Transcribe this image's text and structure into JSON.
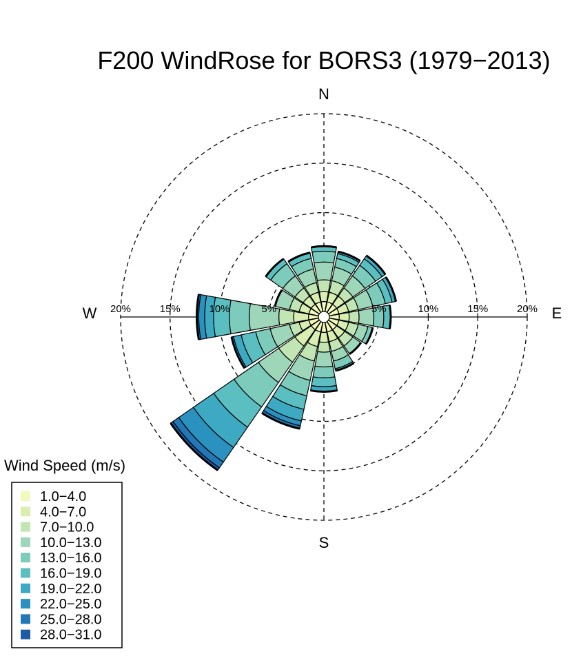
{
  "chart_data": {
    "type": "windrose",
    "title": "F200 WindRose for BORS3 (1979−2013)",
    "directions": [
      "N",
      "NNE",
      "NE",
      "ENE",
      "E",
      "ESE",
      "SE",
      "SSE",
      "S",
      "SSW",
      "SW",
      "WSW",
      "W",
      "WNW",
      "NW",
      "NNW"
    ],
    "compass_labels": {
      "N": "N",
      "E": "E",
      "S": "S",
      "W": "W"
    },
    "radial_ticks": [
      5,
      10,
      15,
      20
    ],
    "radial_tick_labels": [
      "5%",
      "10%",
      "15%",
      "20%"
    ],
    "rmax": 20,
    "legend": {
      "title": "Wind Speed (m/s)",
      "bins": [
        "1.0−4.0",
        "4.0−7.0",
        "7.0−10.0",
        "10.0−13.0",
        "13.0−16.0",
        "16.0−19.0",
        "19.0−22.0",
        "22.0−25.0",
        "25.0−28.0",
        "28.0−31.0"
      ],
      "colors": [
        "#f2f9bd",
        "#d9efb2",
        "#c2e6b3",
        "#9dd6b8",
        "#7ccbbb",
        "#5bbec0",
        "#3ea9c2",
        "#2b92bf",
        "#2277b4",
        "#1e5ba6"
      ]
    },
    "series": [
      {
        "direction": "N",
        "cumulative": [
          1.0,
          2.0,
          3.2,
          5.0,
          6.1,
          6.6
        ]
      },
      {
        "direction": "NNE",
        "cumulative": [
          1.0,
          2.0,
          3.2,
          4.6,
          5.5,
          6.0,
          6.2
        ]
      },
      {
        "direction": "NE",
        "cumulative": [
          1.0,
          2.0,
          3.0,
          4.5,
          5.8,
          6.6,
          7.0
        ]
      },
      {
        "direction": "ENE",
        "cumulative": [
          1.0,
          2.0,
          3.0,
          4.5,
          5.8,
          6.5,
          6.9
        ]
      },
      {
        "direction": "E",
        "cumulative": [
          1.0,
          2.0,
          3.0,
          4.5,
          5.5,
          6.2
        ]
      },
      {
        "direction": "ESE",
        "cumulative": [
          1.0,
          2.0,
          3.0,
          4.0,
          4.5
        ]
      },
      {
        "direction": "SE",
        "cumulative": [
          1.0,
          2.0,
          3.0,
          4.0
        ]
      },
      {
        "direction": "SSE",
        "cumulative": [
          1.0,
          2.0,
          3.0,
          4.0,
          4.8,
          5.0
        ]
      },
      {
        "direction": "S",
        "cumulative": [
          1.0,
          2.0,
          3.0,
          4.5,
          5.6,
          6.5,
          7.0
        ]
      },
      {
        "direction": "SSW",
        "cumulative": [
          1.0,
          2.5,
          4.0,
          6.0,
          7.6,
          9.0,
          10.2,
          10.7,
          11.0
        ]
      },
      {
        "direction": "SW",
        "cumulative": [
          1.0,
          3.0,
          5.0,
          7.5,
          10.5,
          13.0,
          15.5,
          17.3,
          18.0,
          18.3
        ]
      },
      {
        "direction": "WSW",
        "cumulative": [
          1.0,
          2.0,
          3.0,
          5.0,
          6.5,
          8.0,
          8.8,
          9.0
        ]
      },
      {
        "direction": "W",
        "cumulative": [
          1.0,
          2.5,
          4.0,
          7.0,
          9.0,
          10.6,
          11.5,
          12.1,
          12.3
        ]
      },
      {
        "direction": "WNW",
        "cumulative": [
          1.0,
          2.0,
          3.0,
          4.5
        ]
      },
      {
        "direction": "NW",
        "cumulative": [
          1.0,
          2.0,
          3.0,
          4.5,
          6.0,
          6.6
        ]
      },
      {
        "direction": "NNW",
        "cumulative": [
          1.0,
          2.0,
          3.0,
          4.4,
          5.5,
          6.1
        ]
      }
    ]
  }
}
